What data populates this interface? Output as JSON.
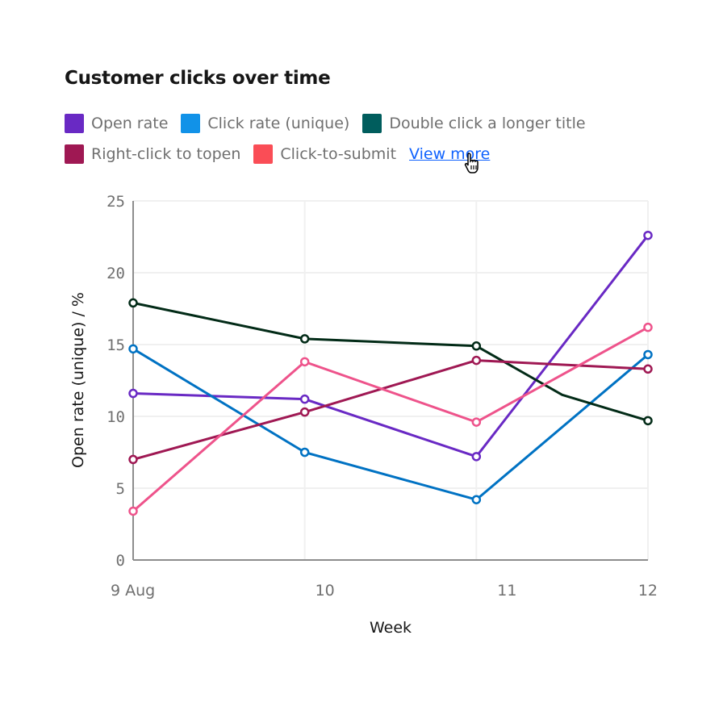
{
  "chart_data": {
    "type": "line",
    "title": "Customer clicks over time",
    "xlabel": "Week",
    "ylabel": "Open rate (unique) / %",
    "ylim": [
      0,
      25
    ],
    "yticks": [
      "0",
      "5",
      "10",
      "15",
      "20",
      "25"
    ],
    "xlim": [
      9,
      12
    ],
    "xticks": [
      {
        "value": 9,
        "label": "9 Aug"
      },
      {
        "value": 10,
        "label": "10"
      },
      {
        "value": 11,
        "label": "11"
      },
      {
        "value": 12,
        "label": "12"
      }
    ],
    "grid": true,
    "legend_position": "top-left",
    "view_more_label": "View more",
    "series": [
      {
        "name": "Open rate",
        "legend_color": "#6929c4",
        "line_color": "#6929c4",
        "points": [
          {
            "x": 9,
            "y": 11.6
          },
          {
            "x": 10,
            "y": 11.2
          },
          {
            "x": 11,
            "y": 7.2
          },
          {
            "x": 12,
            "y": 22.6
          }
        ]
      },
      {
        "name": "Click rate (unique)",
        "legend_color": "#1192e8",
        "line_color": "#0072c3",
        "points": [
          {
            "x": 9,
            "y": 14.7
          },
          {
            "x": 10,
            "y": 7.5
          },
          {
            "x": 11,
            "y": 4.2
          },
          {
            "x": 12,
            "y": 14.3
          }
        ]
      },
      {
        "name": "Double click a longer title",
        "legend_color": "#005d5d",
        "line_color": "#022b17",
        "points": [
          {
            "x": 9,
            "y": 17.9
          },
          {
            "x": 10,
            "y": 15.4
          },
          {
            "x": 11,
            "y": 14.9
          },
          {
            "x": 11.5,
            "y": 11.5,
            "marker": false
          },
          {
            "x": 12,
            "y": 9.7
          }
        ]
      },
      {
        "name": "Right-click to topen",
        "legend_color": "#9f1853",
        "line_color": "#9f1853",
        "points": [
          {
            "x": 9,
            "y": 7.0
          },
          {
            "x": 10,
            "y": 10.3
          },
          {
            "x": 11,
            "y": 13.9
          },
          {
            "x": 12,
            "y": 13.3
          }
        ]
      },
      {
        "name": "Click-to-submit",
        "legend_color": "#fa4d56",
        "line_color": "#ee538b",
        "points": [
          {
            "x": 9,
            "y": 3.4
          },
          {
            "x": 10,
            "y": 13.8
          },
          {
            "x": 11,
            "y": 9.6
          },
          {
            "x": 12,
            "y": 16.2
          }
        ]
      }
    ]
  }
}
